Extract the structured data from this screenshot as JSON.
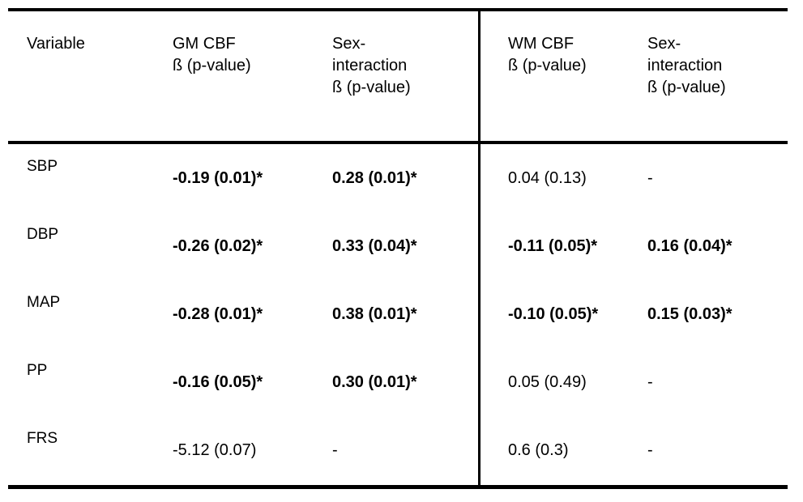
{
  "table": {
    "headers": {
      "variable": "Variable",
      "gm_cbf": "GM CBF\nß (p-value)",
      "gm_sex": "Sex-\ninteraction\nß (p-value)",
      "wm_cbf": "WM CBF\nß (p-value)",
      "wm_sex": "Sex-\ninteraction\nß (p-value)"
    },
    "rows": [
      {
        "variable": "SBP",
        "gm_cbf": "-0.19 (0.01)*",
        "gm_sex": "0.28 (0.01)*",
        "wm_cbf": "0.04 (0.13)",
        "wm_sex": "-"
      },
      {
        "variable": "DBP",
        "gm_cbf": "-0.26 (0.02)*",
        "gm_sex": "0.33 (0.04)*",
        "wm_cbf": "-0.11 (0.05)*",
        "wm_sex": "0.16 (0.04)*"
      },
      {
        "variable": "MAP",
        "gm_cbf": "-0.28 (0.01)*",
        "gm_sex": "0.38 (0.01)*",
        "wm_cbf": "-0.10 (0.05)*",
        "wm_sex": "0.15 (0.03)*"
      },
      {
        "variable": "PP",
        "gm_cbf": "-0.16 (0.05)*",
        "gm_sex": "0.30 (0.01)*",
        "wm_cbf": "0.05 (0.49)",
        "wm_sex": "-"
      },
      {
        "variable": "FRS",
        "gm_cbf": "-5.12 (0.07)",
        "gm_sex": "-",
        "wm_cbf": "0.6 (0.3)",
        "wm_sex": "-"
      }
    ]
  }
}
